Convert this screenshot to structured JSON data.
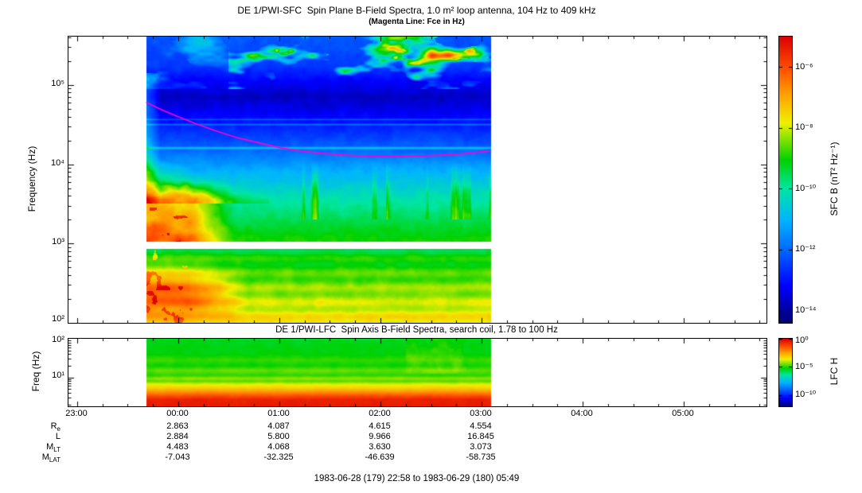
{
  "chart_data": [
    {
      "type": "heatmap",
      "panel": "SFC",
      "title": "DE 1/PWI-SFC  Spin Plane B-Field Spectra, 1.0 m² loop antenna, 104 Hz to 409 kHz",
      "subtitle": "(Magenta Line: Fce in Hz)",
      "ylabel": "Frequency (Hz)",
      "ylim_log10hz": [
        2.0,
        5.61
      ],
      "ytick_labels": [
        "10⁵",
        "10⁴",
        "10³",
        "10²"
      ],
      "ytick_log10": [
        5,
        4,
        3,
        2
      ],
      "xlim_hours_from_2300": [
        -0.085,
        6.817
      ],
      "data_extent_hours": [
        0.683,
        4.083
      ],
      "gap_log10hz": [
        2.93,
        3.02
      ],
      "colorbar": {
        "label": "SFC B (nT² Hz⁻¹)",
        "tick_labels": [
          "10⁻⁶",
          "10⁻⁸",
          "10⁻¹⁰",
          "10⁻¹²",
          "10⁻¹⁴"
        ],
        "tick_log10": [
          -6,
          -8,
          -10,
          -12,
          -14
        ],
        "value_range_log10": [
          -14.4,
          -5.0
        ]
      },
      "fce_line": {
        "color": "#FF00CC",
        "points_t_log10hz": [
          [
            0.683,
            4.78
          ],
          [
            0.85,
            4.68
          ],
          [
            1.0,
            4.6
          ],
          [
            1.2,
            4.5
          ],
          [
            1.4,
            4.41
          ],
          [
            1.6,
            4.33
          ],
          [
            1.8,
            4.27
          ],
          [
            2.0,
            4.21
          ],
          [
            2.2,
            4.17
          ],
          [
            2.4,
            4.14
          ],
          [
            2.6,
            4.12
          ],
          [
            2.8,
            4.105
          ],
          [
            3.0,
            4.1
          ],
          [
            3.2,
            4.1
          ],
          [
            3.4,
            4.105
          ],
          [
            3.6,
            4.115
          ],
          [
            3.8,
            4.13
          ],
          [
            3.95,
            4.15
          ],
          [
            4.083,
            4.17
          ]
        ]
      },
      "profile_log10_power": [
        [
          3.02,
          -8.9
        ],
        [
          3.3,
          -9.5
        ],
        [
          3.6,
          -10.2
        ],
        [
          3.9,
          -11.0
        ],
        [
          4.15,
          -11.9
        ],
        [
          4.5,
          -12.9
        ],
        [
          4.85,
          -13.7
        ],
        [
          5.05,
          -13.2
        ],
        [
          5.25,
          -12.5
        ],
        [
          5.61,
          -12.2
        ]
      ],
      "lower_band_log10_power": [
        [
          2.0,
          -7.6
        ],
        [
          2.93,
          -9.3
        ]
      ],
      "emission_lines_log10hz": [
        4.205,
        4.5,
        4.565
      ]
    },
    {
      "type": "heatmap",
      "panel": "LFC",
      "title": "DE 1/PWI-LFC  Spin Axis B-Field Spectra, search coil, 1.78 to 100 Hz",
      "ylabel": "Freq (Hz)",
      "ylim_log10hz": [
        0.25,
        2.0
      ],
      "ytick_labels": [
        "10²",
        "10¹"
      ],
      "ytick_log10": [
        2,
        1
      ],
      "colorbar": {
        "label": "LFC H",
        "tick_labels": [
          "10⁰",
          "10⁻⁵",
          "10⁻¹⁰"
        ],
        "tick_log10": [
          0,
          -5,
          -10
        ],
        "value_range_log10": [
          -12,
          0
        ]
      },
      "profile_log10_power": [
        [
          0.25,
          -0.45
        ],
        [
          0.42,
          -0.55
        ],
        [
          0.5,
          -1.1
        ],
        [
          0.6,
          -2.0
        ],
        [
          0.72,
          -3.1
        ],
        [
          0.82,
          -3.7
        ],
        [
          0.9,
          -4.6
        ],
        [
          0.97,
          -4.2
        ],
        [
          1.05,
          -4.9
        ],
        [
          1.18,
          -4.5
        ],
        [
          1.3,
          -5.1
        ],
        [
          1.45,
          -4.8
        ],
        [
          1.6,
          -5.2
        ],
        [
          2.0,
          -5.4
        ]
      ]
    }
  ],
  "xaxis": {
    "tick_labels": [
      "23:00",
      "00:00",
      "01:00",
      "02:00",
      "03:00",
      "04:00",
      "05:00"
    ],
    "tick_hours_from_2300": [
      0,
      1,
      2,
      3,
      4,
      5,
      6
    ]
  },
  "ephemeris": {
    "rows": [
      {
        "label": "R",
        "sub": "e",
        "values": [
          "2.863",
          "4.087",
          "4.615",
          "4.554"
        ]
      },
      {
        "label": "L",
        "sub": "",
        "values": [
          "2.884",
          "5.800",
          "9.966",
          "16.845"
        ]
      },
      {
        "label": "M",
        "sub": "LT",
        "values": [
          "4.483",
          "4.068",
          "3.630",
          "3.073"
        ]
      },
      {
        "label": "M",
        "sub": "LAT",
        "values": [
          "-7.043",
          "-32.325",
          "-46.639",
          "-58.735"
        ]
      }
    ]
  },
  "footer": "1983-06-28 (179) 22:58 to 1983-06-29 (180) 05:49",
  "colors": {
    "background": "#FFFFFF",
    "axis": "#000000",
    "fce_line": "#FF00CC",
    "colormap_stops": [
      [
        0,
        "#000070"
      ],
      [
        0.13,
        "#0000FF"
      ],
      [
        0.25,
        "#0064FF"
      ],
      [
        0.36,
        "#00B4FF"
      ],
      [
        0.47,
        "#00E6A4"
      ],
      [
        0.57,
        "#00D200"
      ],
      [
        0.7,
        "#F0F000"
      ],
      [
        0.8,
        "#FFA000"
      ],
      [
        0.89,
        "#FF5000"
      ],
      [
        1,
        "#DC0000"
      ]
    ]
  }
}
